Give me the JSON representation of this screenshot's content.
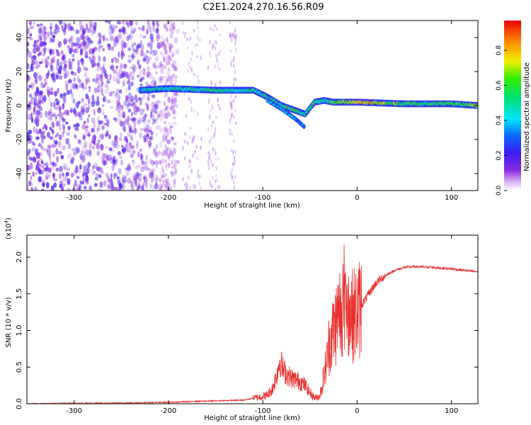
{
  "page": {
    "title": "C2E1.2024.270.16.56.R09"
  },
  "colors": {
    "snr_line": "#e8302e",
    "axis": "#000000",
    "background": "#ffffff"
  },
  "chart_data": [
    {
      "type": "heatmap",
      "title": "C2E1.2024.270.16.56.R09",
      "xlabel": "Height of straight line (km)",
      "ylabel": "Frequency (Hz)",
      "xlim": [
        -350,
        128
      ],
      "ylim": [
        -50,
        50
      ],
      "x_ticks": [
        -300,
        -200,
        -100,
        0,
        100
      ],
      "y_ticks": [
        -40,
        -20,
        0,
        20,
        40
      ],
      "colorbar": {
        "label": "Normalized spectral amplitude",
        "range": [
          0.0,
          0.97
        ],
        "ticks": [
          0.0,
          0.2,
          0.4,
          0.6,
          0.8
        ],
        "colormap": "rainbow (violet-blue-cyan-green-yellow-red)"
      },
      "ridge": {
        "description": "dominant spectral ridge",
        "x": [
          -230,
          -200,
          -150,
          -110,
          -95,
          -80,
          -65,
          -55,
          -45,
          -35,
          -25,
          0,
          50,
          100,
          128
        ],
        "y": [
          9,
          10,
          9,
          9,
          5,
          0,
          -3,
          -5,
          2,
          3,
          2,
          2,
          1,
          1,
          0
        ],
        "amplitude": [
          0.4,
          0.5,
          0.55,
          0.5,
          0.5,
          0.55,
          0.6,
          0.5,
          0.55,
          0.5,
          0.6,
          0.85,
          0.6,
          0.55,
          0.7
        ]
      },
      "secondary_branch": {
        "x": [
          -95,
          -80,
          -65,
          -55
        ],
        "y": [
          3,
          -2,
          -8,
          -13
        ],
        "amplitude": [
          0.4,
          0.45,
          0.4,
          0.35
        ]
      },
      "noise_region": {
        "x_range": [
          -350,
          -210
        ],
        "y_range": [
          -50,
          50
        ],
        "amplitude": 0.1
      }
    },
    {
      "type": "line",
      "xlabel": "Height of straight line (km)",
      "ylabel": "SNR (10 * v/v)",
      "yscale_note": "(x10",
      "yscale_exponent": "4",
      "xlim": [
        -350,
        128
      ],
      "ylim": [
        0,
        2.3
      ],
      "x_ticks": [
        -300,
        -200,
        -100,
        0,
        100
      ],
      "y_ticks": [
        0.0,
        0.5,
        1.0,
        1.5,
        2.0
      ],
      "series": [
        {
          "envelope_x": [
            -350,
            -250,
            -200,
            -150,
            -120,
            -100,
            -95,
            -90,
            -85,
            -82,
            -78,
            -70,
            -60,
            -55,
            -50,
            -45,
            -40,
            -38,
            -35,
            -32,
            -30,
            -25,
            -20,
            -15,
            -12,
            -10,
            -5,
            0,
            10,
            20,
            30,
            40,
            50,
            60,
            80,
            100,
            128
          ],
          "envelope_y": [
            0.0,
            0.01,
            0.02,
            0.04,
            0.05,
            0.1,
            0.12,
            0.2,
            0.4,
            0.6,
            0.45,
            0.35,
            0.3,
            0.25,
            0.15,
            0.08,
            0.1,
            0.2,
            0.4,
            0.6,
            0.8,
            1.0,
            1.2,
            1.4,
            1.5,
            1.3,
            1.2,
            1.25,
            1.45,
            1.65,
            1.75,
            1.82,
            1.86,
            1.87,
            1.86,
            1.84,
            1.8
          ]
        }
      ]
    }
  ]
}
